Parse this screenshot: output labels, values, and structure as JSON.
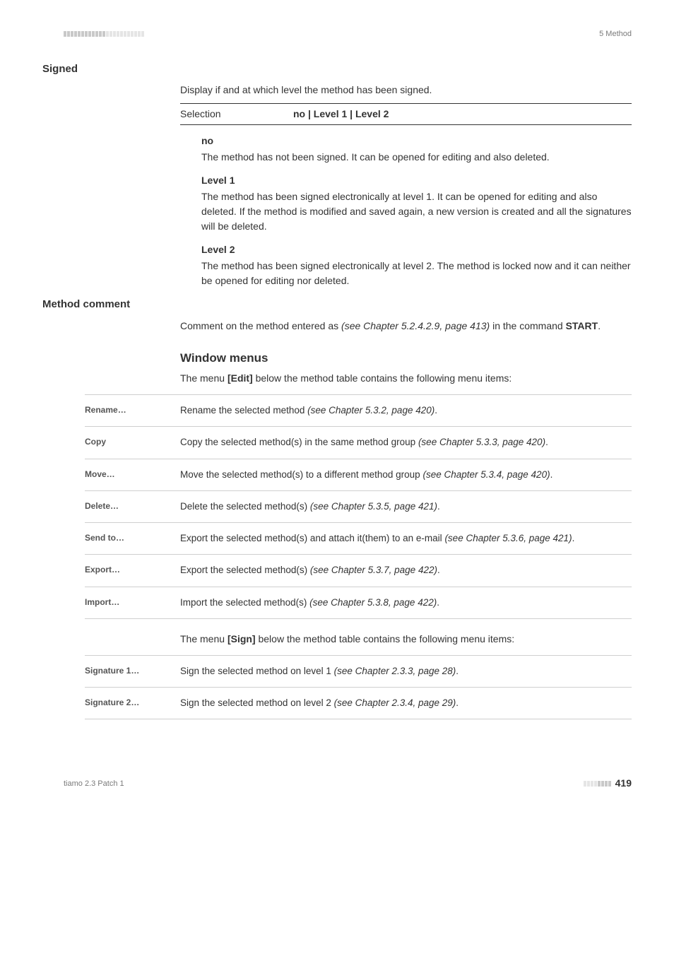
{
  "header": {
    "chapter": "5 Method"
  },
  "signed": {
    "label": "Signed",
    "intro": "Display if and at which level the method has been signed.",
    "selection_label": "Selection",
    "selection_value": "no | Level 1 | Level 2",
    "opts": [
      {
        "head": "no",
        "body": "The method has not been signed. It can be opened for editing and also deleted."
      },
      {
        "head": "Level 1",
        "body": "The method has been signed electronically at level 1. It can be opened for editing and also deleted. If the method is modified and saved again, a new version is created and all the signatures will be deleted."
      },
      {
        "head": "Level 2",
        "body": "The method has been signed electronically at level 2. The method is locked now and it can neither be opened for editing nor deleted."
      }
    ]
  },
  "method_comment": {
    "label": "Method comment",
    "body_pre": "Comment on the method entered as ",
    "body_ital": "(see Chapter 5.2.4.2.9, page 413)",
    "body_post": " in the command ",
    "body_bold": "START",
    "body_end": "."
  },
  "window_menus": {
    "title": "Window menus",
    "intro_pre": "The menu ",
    "intro_bold": "[Edit]",
    "intro_post": " below the method table contains the following menu items:",
    "edit_items": [
      {
        "key": "Rename…",
        "desc_pre": "Rename the selected method ",
        "desc_ital": "(see Chapter 5.3.2, page 420)",
        "desc_post": "."
      },
      {
        "key": "Copy",
        "desc_pre": "Copy the selected method(s) in the same method group ",
        "desc_ital": "(see Chapter 5.3.3, page 420)",
        "desc_post": "."
      },
      {
        "key": "Move…",
        "desc_pre": "Move the selected method(s) to a different method group ",
        "desc_ital": "(see Chapter 5.3.4, page 420)",
        "desc_post": "."
      },
      {
        "key": "Delete…",
        "desc_pre": "Delete the selected method(s) ",
        "desc_ital": "(see Chapter 5.3.5, page 421)",
        "desc_post": "."
      },
      {
        "key": "Send to…",
        "desc_pre": "Export the selected method(s) and attach it(them) to an e-mail ",
        "desc_ital": "(see Chapter 5.3.6, page 421)",
        "desc_post": "."
      },
      {
        "key": "Export…",
        "desc_pre": "Export the selected method(s) ",
        "desc_ital": "(see Chapter 5.3.7, page 422)",
        "desc_post": "."
      },
      {
        "key": "Import…",
        "desc_pre": "Import the selected method(s) ",
        "desc_ital": "(see Chapter 5.3.8, page 422)",
        "desc_post": "."
      }
    ],
    "sign_intro_pre": "The menu ",
    "sign_intro_bold": "[Sign]",
    "sign_intro_post": " below the method table contains the following menu items:",
    "sign_items": [
      {
        "key": "Signature 1…",
        "desc_pre": "Sign the selected method on level 1 ",
        "desc_ital": "(see Chapter 2.3.3, page 28)",
        "desc_post": "."
      },
      {
        "key": "Signature 2…",
        "desc_pre": "Sign the selected method on level 2 ",
        "desc_ital": "(see Chapter 2.3.4, page 29)",
        "desc_post": "."
      }
    ]
  },
  "footer": {
    "product": "tiamo 2.3 Patch 1",
    "page": "419"
  },
  "style": {
    "tick_colors": [
      "#c9c9c9",
      "#e5e5e5"
    ],
    "rule_color": "#cfcfcf"
  }
}
